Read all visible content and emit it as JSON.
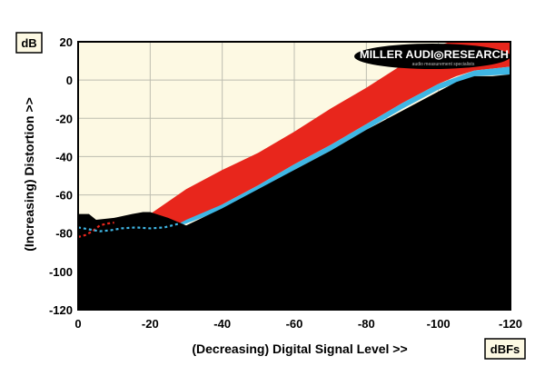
{
  "chart_data": {
    "type": "area",
    "title": "",
    "xlabel": "(Decreasing) Digital Signal Level >>",
    "ylabel": "(Increasing) Distortion >>",
    "x_unit": "dBFs",
    "y_unit": "dB",
    "xlim": [
      0,
      -120
    ],
    "ylim": [
      -120,
      20
    ],
    "x_ticks": [
      0,
      -20,
      -40,
      -60,
      -80,
      -100,
      -120
    ],
    "x_tick_labels": [
      "0",
      "-20",
      "-40",
      "-60",
      "-80",
      "-100",
      "-120"
    ],
    "y_ticks": [
      20,
      0,
      -20,
      -40,
      -60,
      -80,
      -100,
      -120
    ],
    "y_tick_labels": [
      "20",
      "0",
      "-20",
      "-40",
      "-60",
      "-80",
      "-100",
      "-120"
    ],
    "grid": true,
    "colors": {
      "background": "#fdf9e3",
      "red": "#e8261c",
      "cyan": "#3fb6e4",
      "black": "#000000",
      "grid": "#bdbdb0"
    },
    "series": [
      {
        "color": "#e8261c",
        "x": [
          0,
          -10,
          -20,
          -30,
          -40,
          -50,
          -60,
          -70,
          -80,
          -90,
          -100,
          -105,
          -110,
          -120
        ],
        "y_upper": [
          -78,
          -77,
          -70,
          -57,
          -47,
          -38,
          -27,
          -15,
          -4,
          8,
          18,
          21,
          24,
          24
        ],
        "y_lower": [
          -82,
          -78,
          -74,
          -75,
          -65,
          -55,
          -44,
          -34,
          -23,
          -12,
          -2,
          2,
          5,
          7
        ]
      },
      {
        "color": "#3fb6e4",
        "x": [
          0,
          -10,
          -20,
          -28,
          -30,
          -40,
          -50,
          -60,
          -70,
          -80,
          -90,
          -100,
          -110,
          -120
        ],
        "y_upper": [
          -76,
          -77,
          -77,
          -75,
          -73,
          -65,
          -55,
          -44,
          -34,
          -23,
          -12,
          -2,
          5,
          7
        ],
        "y_lower": [
          -77,
          -78,
          -78,
          -76,
          -75,
          -68,
          -58,
          -47,
          -37,
          -26,
          -15,
          -5,
          2,
          3
        ]
      },
      {
        "color": "#000000",
        "x": [
          0,
          -3,
          -5,
          -10,
          -15,
          -18,
          -20,
          -25,
          -30,
          -40,
          -50,
          -60,
          -70,
          -80,
          -90,
          -100,
          -105,
          -110,
          -115,
          -120
        ],
        "y": [
          -70,
          -70,
          -73,
          -72,
          -70,
          -69,
          -69,
          -72,
          -76,
          -67,
          -57,
          -47,
          -37,
          -26,
          -16,
          -6,
          -1,
          2,
          2,
          3
        ]
      }
    ],
    "annotations": {
      "logo": "MILLER AUDIO RESEARCH",
      "logo_tagline": "audio measurement specialists"
    }
  }
}
